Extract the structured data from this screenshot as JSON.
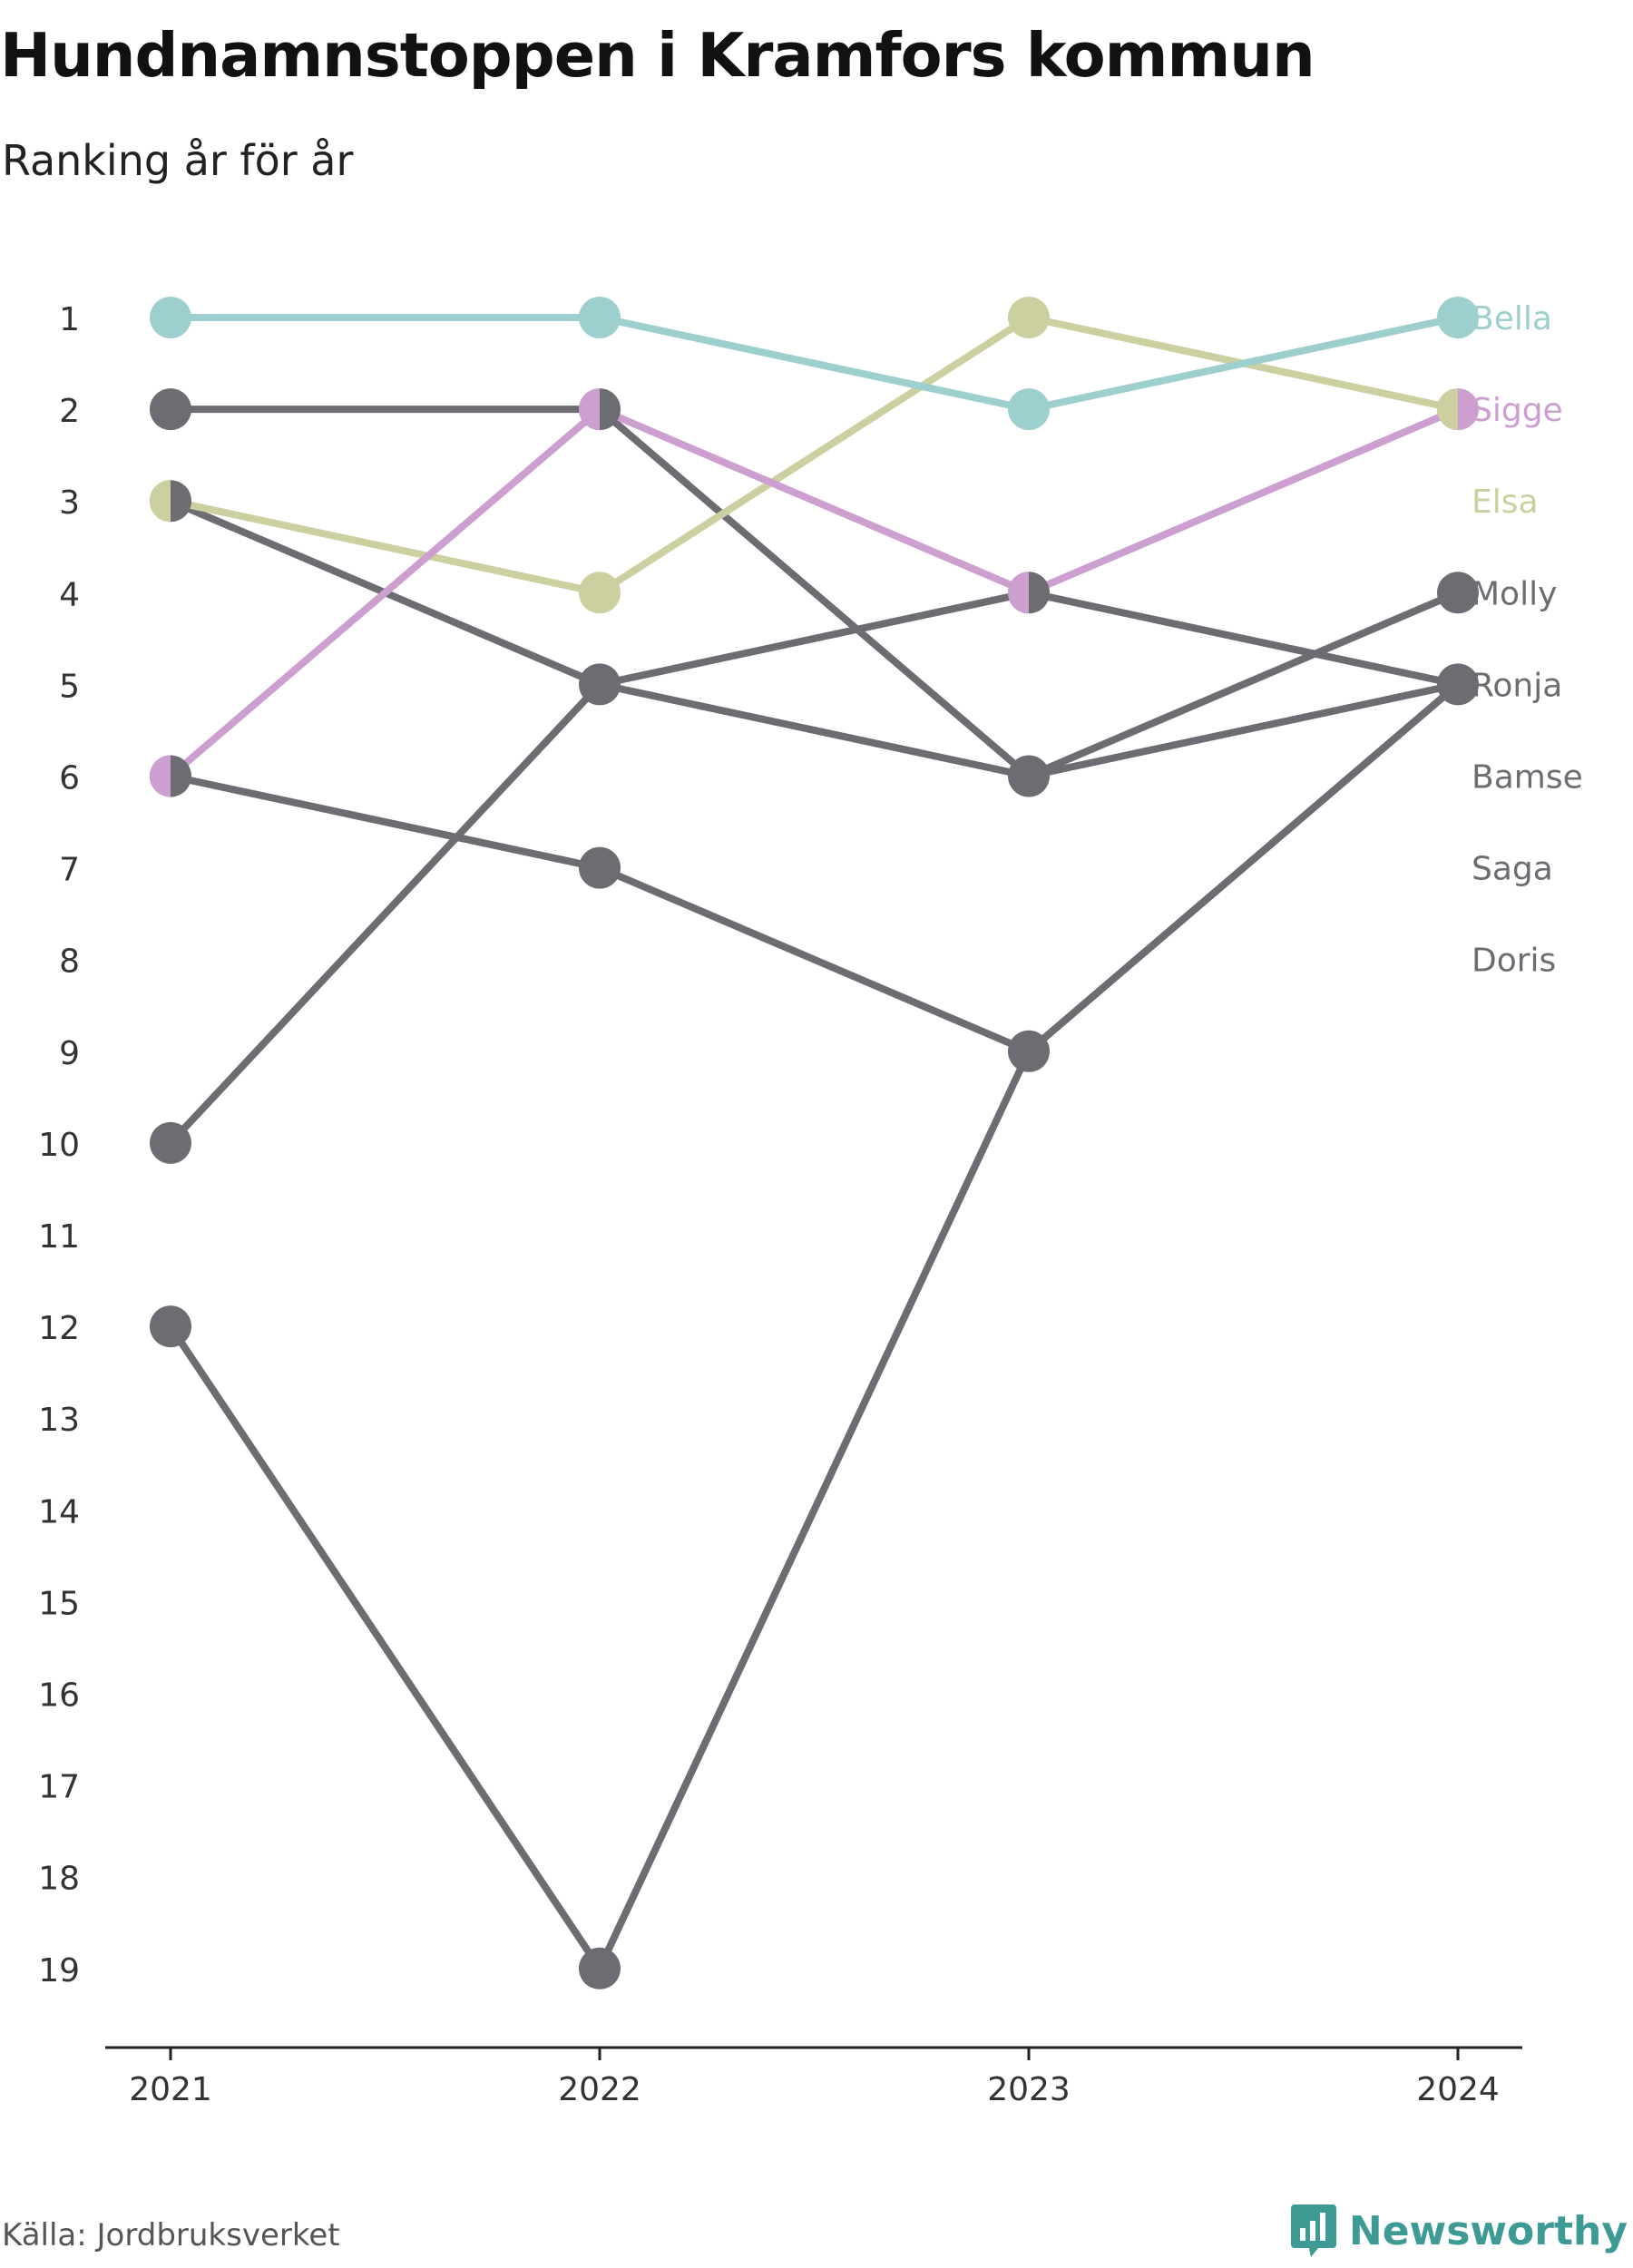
{
  "title": "Hundnamnstoppen i Kramfors kommun",
  "subtitle": "Ranking år för år",
  "source": "Källa: Jordbruksverket",
  "brand": {
    "name": "Newsworthy",
    "color": "#3e9a94",
    "icon": "bar-chart-bubble-icon"
  },
  "colors": {
    "Bella": "#9dcfcf",
    "Sigge": "#cc9fd0",
    "Elsa": "#cccf9f",
    "other": "#6d6c72",
    "axis": "#222222",
    "tick_text": "#333333"
  },
  "chart_data": {
    "type": "line",
    "x": [
      "2021",
      "2022",
      "2023",
      "2024"
    ],
    "y_ticks": [
      1,
      2,
      3,
      4,
      5,
      6,
      7,
      8,
      9,
      10,
      11,
      12,
      13,
      14,
      15,
      16,
      17,
      18,
      19
    ],
    "ylim": [
      1,
      19
    ],
    "y_reversed": true,
    "grid": false,
    "legend": "right end labels",
    "series": [
      {
        "name": "Doris",
        "values": [
          12,
          19,
          9,
          5
        ]
      },
      {
        "name": "Saga",
        "values": [
          10,
          5,
          4,
          5
        ]
      },
      {
        "name": "Bamse",
        "values": [
          3,
          5,
          6,
          4
        ]
      },
      {
        "name": "Ronja",
        "values": [
          6,
          7,
          9,
          5
        ]
      },
      {
        "name": "Molly",
        "values": [
          2,
          2,
          6,
          5
        ]
      },
      {
        "name": "Elsa",
        "values": [
          3,
          4,
          1,
          2
        ]
      },
      {
        "name": "Sigge",
        "values": [
          6,
          2,
          4,
          2
        ]
      },
      {
        "name": "Bella",
        "values": [
          1,
          1,
          2,
          1
        ]
      }
    ],
    "labels": [
      {
        "name": "Bella",
        "rank": 1,
        "color": "Bella"
      },
      {
        "name": "Sigge",
        "rank": 2,
        "color": "Sigge"
      },
      {
        "name": "Elsa",
        "rank": 3,
        "color": "Elsa"
      },
      {
        "name": "Molly",
        "rank": 4,
        "color": "other"
      },
      {
        "name": "Ronja",
        "rank": 5,
        "color": "other"
      },
      {
        "name": "Bamse",
        "rank": 6,
        "color": "other"
      },
      {
        "name": "Saga",
        "rank": 7,
        "color": "other"
      },
      {
        "name": "Doris",
        "rank": 8,
        "color": "other"
      }
    ]
  }
}
